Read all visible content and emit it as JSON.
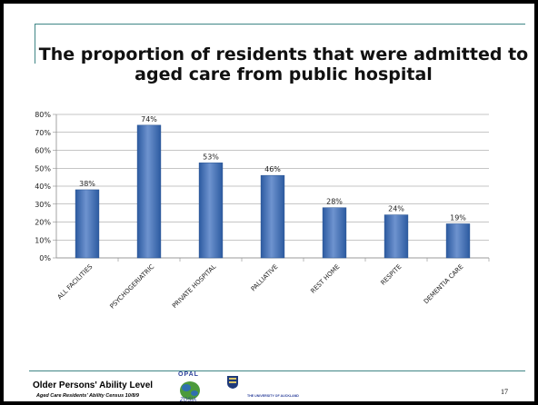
{
  "slide": {
    "title": "The proportion of residents that were admitted to aged care from public hospital",
    "footer_title": "Older Persons' Ability Level",
    "footer_subtitle": "Aged Care Residents' Ability Census 10/8/9",
    "logo_text": "OPAL",
    "university_text": "THE UNIVERSITY OF AUCKLAND",
    "slide_number": "17"
  },
  "colors": {
    "accent": "#3f8686",
    "bar_light": "#6e93cf",
    "bar_dark": "#2c5aa0",
    "grid": "#8c8c8c"
  },
  "chart_data": {
    "type": "bar",
    "title": "",
    "xlabel": "",
    "ylabel": "",
    "categories": [
      "ALL FACILITIES",
      "PSYCHOGERIATRIC",
      "PRIVATE HOSPITAL",
      "PALLIATIVE",
      "REST HOME",
      "RESPITE",
      "DEMENTIA CARE"
    ],
    "values": [
      38,
      74,
      53,
      46,
      28,
      24,
      19
    ],
    "value_labels": [
      "38%",
      "74%",
      "53%",
      "46%",
      "28%",
      "24%",
      "19%"
    ],
    "ylim": [
      0,
      80
    ],
    "yticks": [
      "0%",
      "10%",
      "20%",
      "30%",
      "40%",
      "50%",
      "60%",
      "70%",
      "80%"
    ],
    "grid": true,
    "legend": "none"
  }
}
